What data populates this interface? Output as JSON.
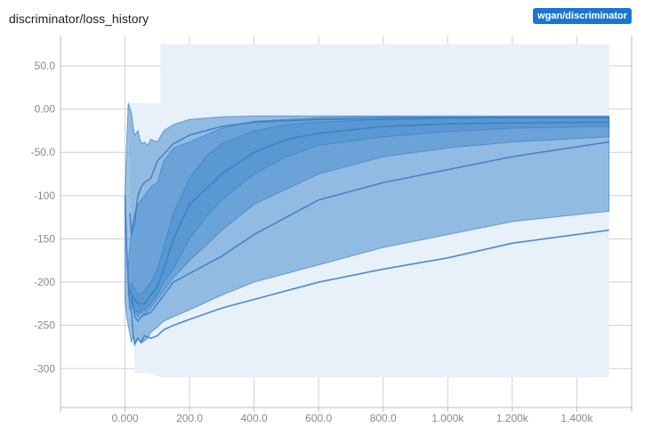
{
  "header": {
    "title": "discriminator/loss_history",
    "run_tag": "wgan/discriminator"
  },
  "colors": {
    "accent": "#1976d2",
    "band_outer": "#e8f0fa",
    "band": "#4a90d0",
    "line": "#3a80c4",
    "grid": "#d0d0d0"
  },
  "chart_data": {
    "type": "area",
    "x_ticks": [
      "0.000",
      "200.0",
      "400.0",
      "600.0",
      "800.0",
      "1.000k",
      "1.200k",
      "1.400k"
    ],
    "y_ticks": [
      "50.0",
      "0.00",
      "-50.0",
      "-100",
      "-150",
      "-200",
      "-250",
      "-300"
    ],
    "x_tick_values": [
      0,
      200,
      400,
      600,
      800,
      1000,
      1200,
      1400
    ],
    "y_tick_values": [
      50,
      0,
      -50,
      -100,
      -150,
      -200,
      -250,
      -300
    ],
    "xlim": [
      -200,
      1570
    ],
    "ylim": [
      -345,
      85
    ],
    "grid": true,
    "envelope": {
      "x": [
        10,
        110,
        110,
        160,
        1500
      ],
      "upper": [
        7,
        7,
        75,
        75,
        75
      ],
      "x_low": [
        30,
        70,
        110,
        1500
      ],
      "lower": [
        -305,
        -305,
        -310,
        -310
      ]
    },
    "bands": [
      {
        "x": [
          0,
          5,
          10,
          20,
          25,
          30,
          40,
          50,
          60,
          70,
          80,
          100,
          120,
          150,
          200,
          300,
          400,
          600,
          800,
          1000,
          1200,
          1500
        ],
        "upper": [
          -100,
          -40,
          7,
          -5,
          -20,
          -30,
          -25,
          -40,
          -38,
          -42,
          -35,
          -38,
          -25,
          -18,
          -12,
          -9,
          -8,
          -8,
          -8,
          -8,
          -8,
          -8
        ],
        "lower": [
          -220,
          -240,
          -250,
          -270,
          -262,
          -270,
          -265,
          -270,
          -268,
          -265,
          -258,
          -252,
          -245,
          -240,
          -232,
          -215,
          -200,
          -180,
          -160,
          -145,
          -130,
          -118
        ]
      },
      {
        "x": [
          10,
          20,
          30,
          40,
          50,
          60,
          80,
          100,
          120,
          150,
          200,
          250,
          300,
          400,
          600,
          800,
          1000,
          1200,
          1500
        ],
        "upper": [
          -180,
          -140,
          -120,
          -110,
          -105,
          -100,
          -90,
          -85,
          -60,
          -45,
          -38,
          -30,
          -22,
          -14,
          -10,
          -9,
          -9,
          -9,
          -9
        ],
        "lower": [
          -215,
          -225,
          -235,
          -240,
          -235,
          -238,
          -230,
          -220,
          -210,
          -195,
          -175,
          -158,
          -140,
          -110,
          -75,
          -55,
          -45,
          -38,
          -32
        ]
      },
      {
        "x": [
          20,
          40,
          60,
          80,
          100,
          120,
          150,
          200,
          250,
          300,
          400,
          500,
          600,
          800,
          1000,
          1200,
          1500
        ],
        "upper": [
          -200,
          -215,
          -210,
          -200,
          -185,
          -160,
          -120,
          -80,
          -55,
          -40,
          -25,
          -18,
          -15,
          -12,
          -11,
          -10,
          -10
        ],
        "lower": [
          -230,
          -235,
          -232,
          -225,
          -215,
          -200,
          -185,
          -150,
          -125,
          -105,
          -75,
          -55,
          -42,
          -32,
          -26,
          -22,
          -20
        ]
      }
    ],
    "lines": [
      {
        "x": [
          0,
          5,
          10,
          15,
          20,
          25,
          30,
          40,
          50,
          60,
          80,
          100,
          120,
          150,
          200,
          300,
          400,
          600,
          800,
          1000,
          1200,
          1500
        ],
        "y": [
          -100,
          -160,
          -200,
          -230,
          -235,
          -260,
          -272,
          -265,
          -270,
          -262,
          -265,
          -262,
          -255,
          -250,
          -243,
          -230,
          -220,
          -200,
          -185,
          -172,
          -155,
          -140
        ]
      },
      {
        "x": [
          10,
          15,
          20,
          30,
          40,
          50,
          60,
          80,
          100,
          120,
          150,
          200,
          300,
          400,
          500,
          600,
          800,
          1000,
          1200,
          1500
        ],
        "y": [
          -200,
          -210,
          -215,
          -240,
          -245,
          -240,
          -238,
          -235,
          -225,
          -215,
          -200,
          -190,
          -170,
          -145,
          -125,
          -105,
          -85,
          -70,
          -55,
          -38
        ]
      },
      {
        "x": [
          15,
          20,
          30,
          40,
          50,
          60,
          80,
          100,
          150,
          200,
          300,
          400,
          600,
          800,
          1000,
          1200,
          1500
        ],
        "y": [
          -120,
          -145,
          -130,
          -100,
          -90,
          -85,
          -80,
          -60,
          -40,
          -30,
          -20,
          -15,
          -12,
          -11,
          -10,
          -10,
          -10
        ]
      },
      {
        "x": [
          20,
          40,
          60,
          80,
          100,
          120,
          150,
          200,
          300,
          400,
          500,
          600,
          800,
          1000,
          1200,
          1500
        ],
        "y": [
          -215,
          -225,
          -225,
          -215,
          -205,
          -185,
          -150,
          -110,
          -75,
          -50,
          -35,
          -28,
          -20,
          -17,
          -16,
          -15
        ]
      }
    ]
  }
}
